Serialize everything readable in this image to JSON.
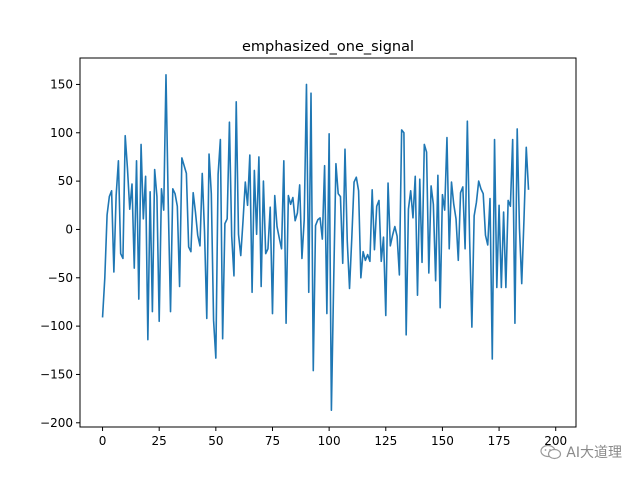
{
  "chart_data": {
    "type": "line",
    "title": "emphasized_one_signal",
    "xlabel": "",
    "ylabel": "",
    "xlim": [
      -9.95,
      208.95
    ],
    "ylim": [
      -204.35,
      177.35
    ],
    "x_ticks": [
      0,
      25,
      50,
      75,
      100,
      125,
      150,
      175,
      200
    ],
    "y_ticks": [
      -200,
      -150,
      -100,
      -50,
      0,
      50,
      100,
      150
    ],
    "grid": false,
    "legend": "none",
    "line_color": "#1f77b4",
    "series": [
      {
        "values": [
          -91,
          -50,
          15,
          34,
          40,
          -44,
          35,
          71,
          -25,
          -30,
          97,
          63,
          21,
          47,
          -40,
          71,
          -72,
          88,
          11,
          55,
          -114,
          39,
          -85,
          62,
          34,
          -95,
          42,
          20,
          160,
          26,
          -85,
          42,
          37,
          24,
          -59,
          74,
          66,
          58,
          -18,
          -23,
          38,
          18,
          -6,
          -17,
          58,
          -2,
          -92,
          78,
          37,
          -94,
          -133,
          57,
          93,
          -113,
          6,
          11,
          111,
          -7,
          -48,
          132,
          -5,
          -27,
          9,
          49,
          25,
          77,
          -65,
          61,
          -5,
          75,
          -59,
          50,
          -25,
          -20,
          23,
          -87,
          35,
          3,
          -9,
          -20,
          71,
          -97,
          35,
          26,
          33,
          9,
          17,
          46,
          -30,
          10,
          150,
          -65,
          141,
          -146,
          4,
          10,
          12,
          -10,
          66,
          -87,
          99,
          -187,
          -55,
          68,
          37,
          34,
          -35,
          83,
          -12,
          -61,
          -9,
          49,
          54,
          40,
          -50,
          -23,
          -32,
          -26,
          -33,
          41,
          -21,
          24,
          30,
          -33,
          -8,
          -89,
          48,
          -17,
          -6,
          3,
          -7,
          -47,
          103,
          100,
          -109,
          21,
          40,
          12,
          55,
          -68,
          52,
          -34,
          88,
          80,
          -45,
          45,
          26,
          -53,
          56,
          -81,
          36,
          20,
          95,
          -20,
          49,
          26,
          11,
          -32,
          38,
          44,
          -20,
          112,
          -10,
          -101,
          14,
          28,
          50,
          42,
          37,
          -6,
          -16,
          32,
          -134,
          93,
          -60,
          25,
          -60,
          18,
          -60,
          30,
          24,
          93,
          -97,
          104,
          1,
          -56,
          11,
          85,
          41
        ]
      }
    ]
  },
  "watermark": {
    "text": "AI大道理",
    "icon": "wechat-icon"
  }
}
